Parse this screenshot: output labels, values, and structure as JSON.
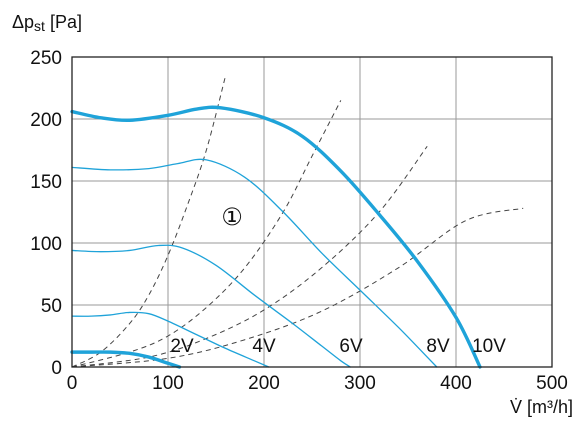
{
  "chart_data": {
    "type": "line",
    "ylabel": "Δp",
    "ylabel_sub": "st",
    "ylabel_unit": " [Pa]",
    "xlabel": "V̇ [m³/h]",
    "xlim": [
      0,
      500
    ],
    "ylim": [
      0,
      250
    ],
    "x_ticks": [
      "0",
      "100",
      "200",
      "300",
      "400",
      "500"
    ],
    "y_ticks": [
      "0",
      "50",
      "100",
      "150",
      "200",
      "250"
    ],
    "grid": true,
    "accent_color": "#1fa3d9",
    "dash_color": "#444444",
    "fan_curves": [
      {
        "name": "2V",
        "points": [
          [
            0,
            12
          ],
          [
            20,
            12
          ],
          [
            40,
            12
          ],
          [
            60,
            11
          ],
          [
            80,
            8
          ],
          [
            100,
            3
          ],
          [
            112,
            0
          ]
        ],
        "bold": true
      },
      {
        "name": "4V",
        "points": [
          [
            0,
            41
          ],
          [
            20,
            41
          ],
          [
            40,
            42
          ],
          [
            60,
            44
          ],
          [
            80,
            43
          ],
          [
            100,
            37
          ],
          [
            130,
            26
          ],
          [
            160,
            15
          ],
          [
            190,
            5
          ],
          [
            205,
            0
          ]
        ],
        "bold": false
      },
      {
        "name": "6V",
        "points": [
          [
            0,
            94
          ],
          [
            30,
            93
          ],
          [
            60,
            94
          ],
          [
            90,
            98
          ],
          [
            115,
            96
          ],
          [
            150,
            82
          ],
          [
            190,
            58
          ],
          [
            230,
            35
          ],
          [
            260,
            17
          ],
          [
            280,
            5
          ],
          [
            290,
            0
          ]
        ],
        "bold": false
      },
      {
        "name": "8V",
        "points": [
          [
            0,
            161
          ],
          [
            40,
            159
          ],
          [
            80,
            160
          ],
          [
            110,
            164
          ],
          [
            140,
            167
          ],
          [
            180,
            153
          ],
          [
            220,
            125
          ],
          [
            260,
            92
          ],
          [
            300,
            62
          ],
          [
            340,
            32
          ],
          [
            370,
            8
          ],
          [
            380,
            0
          ]
        ],
        "bold": false
      },
      {
        "name": "10V",
        "points": [
          [
            0,
            206
          ],
          [
            30,
            201
          ],
          [
            60,
            199
          ],
          [
            100,
            203
          ],
          [
            130,
            208
          ],
          [
            155,
            209
          ],
          [
            200,
            201
          ],
          [
            240,
            186
          ],
          [
            280,
            158
          ],
          [
            320,
            123
          ],
          [
            360,
            85
          ],
          [
            400,
            40
          ],
          [
            425,
            0
          ]
        ],
        "bold": true
      }
    ],
    "system_curves": [
      {
        "points": [
          [
            0,
            0
          ],
          [
            30,
            12
          ],
          [
            60,
            35
          ],
          [
            80,
            58
          ],
          [
            100,
            90
          ],
          [
            120,
            130
          ],
          [
            140,
            175
          ],
          [
            160,
            235
          ]
        ]
      },
      {
        "points": [
          [
            0,
            0
          ],
          [
            60,
            12
          ],
          [
            100,
            25
          ],
          [
            140,
            48
          ],
          [
            180,
            80
          ],
          [
            220,
            125
          ],
          [
            250,
            170
          ],
          [
            280,
            215
          ]
        ]
      },
      {
        "points": [
          [
            0,
            0
          ],
          [
            80,
            8
          ],
          [
            140,
            23
          ],
          [
            200,
            46
          ],
          [
            260,
            80
          ],
          [
            320,
            125
          ],
          [
            370,
            178
          ]
        ]
      },
      {
        "points": [
          [
            0,
            0
          ],
          [
            100,
            7
          ],
          [
            180,
            22
          ],
          [
            260,
            45
          ],
          [
            340,
            80
          ],
          [
            410,
            118
          ],
          [
            470,
            128
          ]
        ]
      }
    ],
    "curve_labels": [
      "2V",
      "4V",
      "6V",
      "8V",
      "10V"
    ],
    "annotation": "①"
  }
}
